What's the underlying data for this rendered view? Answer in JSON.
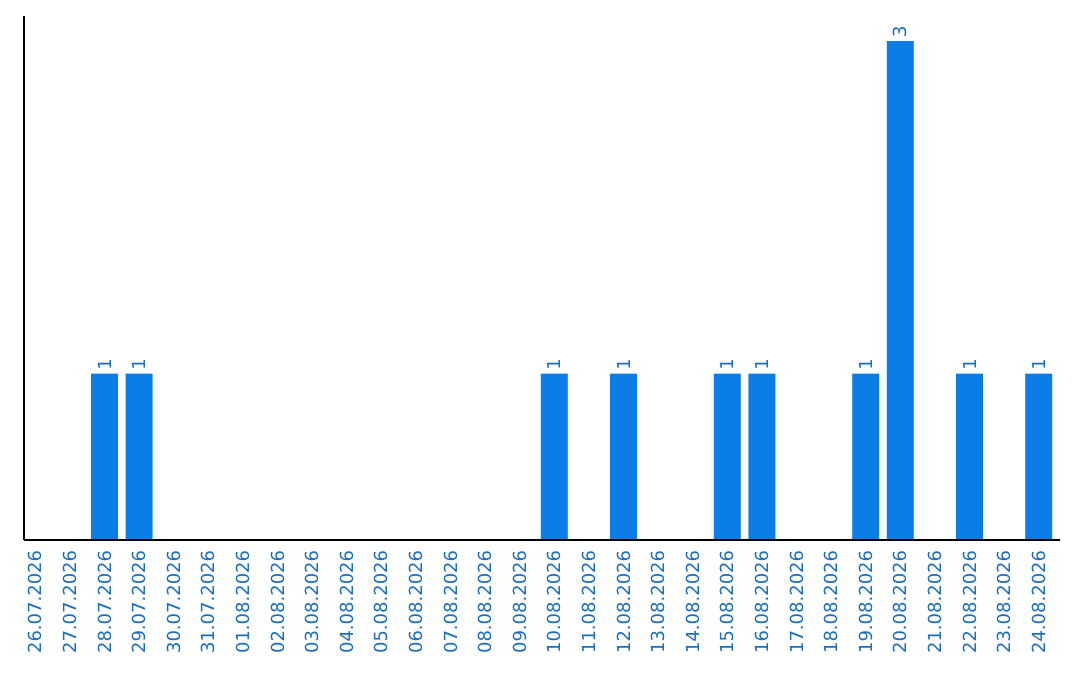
{
  "chart_data": {
    "type": "bar",
    "categories": [
      "26.07.2026",
      "27.07.2026",
      "28.07.2026",
      "29.07.2026",
      "30.07.2026",
      "31.07.2026",
      "01.08.2026",
      "02.08.2026",
      "03.08.2026",
      "04.08.2026",
      "05.08.2026",
      "06.08.2026",
      "07.08.2026",
      "08.08.2026",
      "09.08.2026",
      "10.08.2026",
      "11.08.2026",
      "12.08.2026",
      "13.08.2026",
      "14.08.2026",
      "15.08.2026",
      "16.08.2026",
      "17.08.2026",
      "18.08.2026",
      "19.08.2026",
      "20.08.2026",
      "21.08.2026",
      "22.08.2026",
      "23.08.2026",
      "24.08.2026"
    ],
    "values": [
      0,
      0,
      1,
      1,
      0,
      0,
      0,
      0,
      0,
      0,
      0,
      0,
      0,
      0,
      0,
      1,
      0,
      1,
      0,
      0,
      1,
      1,
      0,
      0,
      1,
      3,
      0,
      1,
      0,
      1
    ],
    "value_labels": [
      null,
      null,
      "1",
      "1",
      null,
      null,
      null,
      null,
      null,
      null,
      null,
      null,
      null,
      null,
      null,
      "1",
      null,
      "1",
      null,
      null,
      "1",
      "1",
      null,
      null,
      "1",
      "3",
      null,
      "1",
      null,
      "1"
    ],
    "color": "#0a7ee6"
  }
}
